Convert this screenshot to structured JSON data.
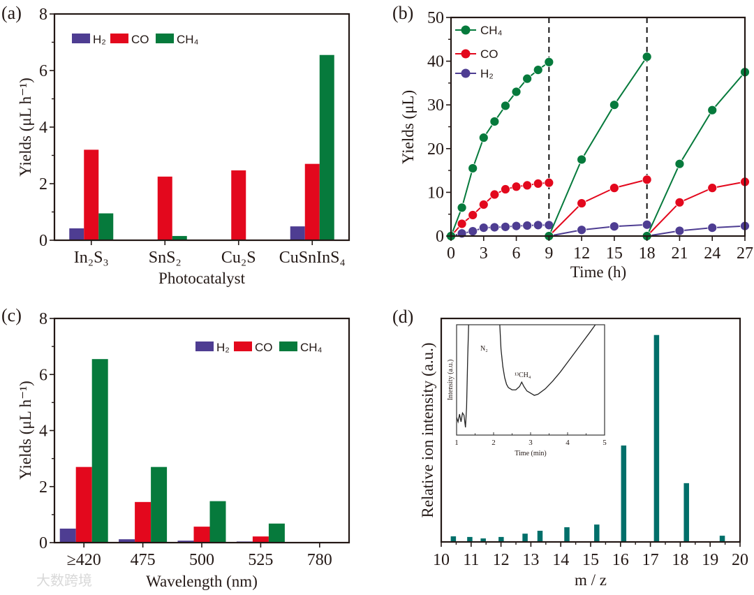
{
  "watermark": "大数跨境",
  "colors": {
    "H2": "#4e3d92",
    "CO": "#e3081d",
    "CH4": "#067a3c",
    "ms_bar": "#006f6a",
    "axis": "#231815"
  },
  "chart_data": [
    {
      "panel": "(a)",
      "type": "bar",
      "title": "",
      "xlabel": "Photocatalyst",
      "ylabel": "Yields (μL h⁻¹)",
      "ylim": [
        0,
        8
      ],
      "yticks": [
        "0",
        "2",
        "4",
        "6",
        "8"
      ],
      "legend": {
        "position": "top-left",
        "entries": [
          "H₂",
          "CO",
          "CH₄"
        ]
      },
      "categories": [
        "In₂S₃",
        "SnS₂",
        "Cu₂S",
        "CuSnInS₄"
      ],
      "series": [
        {
          "name": "H₂",
          "key": "H2",
          "values": [
            0.42,
            0,
            0,
            0.49
          ]
        },
        {
          "name": "CO",
          "key": "CO",
          "values": [
            3.2,
            2.25,
            2.47,
            2.7
          ]
        },
        {
          "name": "CH₄",
          "key": "CH4",
          "values": [
            0.95,
            0.15,
            0,
            6.55
          ]
        }
      ]
    },
    {
      "panel": "(b)",
      "type": "line",
      "xlabel": "Time (h)",
      "ylabel": "Yields (μL)",
      "xlim": [
        0,
        27
      ],
      "ylim": [
        0,
        50
      ],
      "xticks": [
        "0",
        "3",
        "6",
        "9",
        "12",
        "15",
        "18",
        "21",
        "24",
        "27"
      ],
      "yticks": [
        "0",
        "10",
        "20",
        "30",
        "40",
        "50"
      ],
      "cycle_boundaries": [
        9,
        18
      ],
      "legend": {
        "position": "top-left",
        "entries": [
          "CH₄",
          "CO",
          "H₂"
        ]
      },
      "series": [
        {
          "name": "CH₄",
          "key": "CH4",
          "runs": [
            {
              "x": [
                0,
                1,
                2,
                3,
                4,
                5,
                6,
                7,
                8,
                9
              ],
              "y": [
                0,
                6.5,
                15.5,
                22.5,
                26.2,
                29.8,
                33,
                36,
                38,
                39.8
              ]
            },
            {
              "x": [
                9,
                12,
                15,
                18
              ],
              "y": [
                0,
                17.5,
                30,
                41
              ]
            },
            {
              "x": [
                18,
                21,
                24,
                27
              ],
              "y": [
                0,
                16.5,
                28.8,
                37.5
              ]
            }
          ]
        },
        {
          "name": "CO",
          "key": "CO",
          "runs": [
            {
              "x": [
                0,
                1,
                2,
                3,
                4,
                5,
                6,
                7,
                8,
                9
              ],
              "y": [
                0,
                2.8,
                4.8,
                7.2,
                9.5,
                10.7,
                11.3,
                11.6,
                12,
                12.2
              ]
            },
            {
              "x": [
                9,
                12,
                15,
                18
              ],
              "y": [
                0,
                7.5,
                11,
                12.9
              ]
            },
            {
              "x": [
                18,
                21,
                24,
                27
              ],
              "y": [
                0,
                7.7,
                11,
                12.4
              ]
            }
          ]
        },
        {
          "name": "H₂",
          "key": "H2",
          "runs": [
            {
              "x": [
                0,
                1,
                2,
                3,
                4,
                5,
                6,
                7,
                8,
                9
              ],
              "y": [
                0,
                0.6,
                1.1,
                1.9,
                2,
                2.1,
                2.3,
                2.4,
                2.5,
                2.5
              ]
            },
            {
              "x": [
                9,
                12,
                15,
                18
              ],
              "y": [
                0,
                1.4,
                2.2,
                2.6
              ]
            },
            {
              "x": [
                18,
                21,
                24,
                27
              ],
              "y": [
                0,
                1.2,
                1.9,
                2.3
              ]
            }
          ]
        }
      ]
    },
    {
      "panel": "(c)",
      "type": "bar",
      "xlabel": "Wavelength (nm)",
      "ylabel": "Yields (μL h⁻¹)",
      "ylim": [
        0,
        8
      ],
      "yticks": [
        "0",
        "2",
        "4",
        "6",
        "8"
      ],
      "legend": {
        "position": "top-right",
        "entries": [
          "H₂",
          "CO",
          "CH₄"
        ]
      },
      "categories": [
        "≥420",
        "475",
        "500",
        "525",
        "780"
      ],
      "series": [
        {
          "name": "H₂",
          "key": "H2",
          "values": [
            0.5,
            0.12,
            0.07,
            0.04,
            0.02
          ]
        },
        {
          "name": "CO",
          "key": "CO",
          "values": [
            2.7,
            1.45,
            0.57,
            0.22,
            0.02
          ]
        },
        {
          "name": "CH₄",
          "key": "CH4",
          "values": [
            6.55,
            2.7,
            1.48,
            0.68,
            0.02
          ]
        }
      ]
    },
    {
      "panel": "(d)",
      "type": "bar",
      "xlabel": "m / z",
      "ylabel": "Relative ion intensity (a.u.)",
      "xlim": [
        10,
        20
      ],
      "ylim": [
        0,
        108
      ],
      "xticks": [
        "10",
        "11",
        "12",
        "13",
        "14",
        "15",
        "16",
        "17",
        "18",
        "19",
        "20"
      ],
      "x": [
        10.4,
        10.95,
        11.4,
        12.0,
        12.8,
        13.3,
        14.2,
        15.2,
        16.1,
        17.2,
        18.2,
        19.4
      ],
      "values": [
        2.7,
        2.4,
        1.7,
        2.4,
        4.0,
        5.4,
        7.1,
        8.4,
        46.6,
        100,
        28.4,
        3.0
      ],
      "inset": {
        "type": "line",
        "xlabel": "Time (min)",
        "ylabel": "Intensity (a.u.)",
        "xlim": [
          1,
          5
        ],
        "ylim": [
          0,
          1
        ],
        "xticks": [
          "1",
          "2",
          "3",
          "4",
          "5"
        ],
        "annotations": [
          "N₂",
          "¹³CH₄"
        ],
        "x": [
          1.0,
          1.04,
          1.08,
          1.12,
          1.16,
          1.2,
          1.24,
          1.27,
          1.3,
          1.33,
          2.16,
          2.2,
          2.25,
          2.3,
          2.35,
          2.4,
          2.5,
          2.6,
          2.7,
          2.76,
          2.82,
          2.9,
          3.0,
          3.1,
          3.2,
          3.4,
          3.6,
          3.8,
          4.0,
          4.2,
          4.4,
          4.6,
          4.75
        ],
        "y": [
          0.16,
          0.12,
          0.19,
          0.12,
          0.2,
          0.18,
          0.07,
          0.25,
          0.7,
          1.05,
          1.05,
          0.78,
          0.62,
          0.52,
          0.46,
          0.43,
          0.41,
          0.41,
          0.44,
          0.48,
          0.44,
          0.4,
          0.38,
          0.36,
          0.37,
          0.42,
          0.49,
          0.57,
          0.66,
          0.75,
          0.84,
          0.93,
          1.0
        ]
      }
    }
  ]
}
